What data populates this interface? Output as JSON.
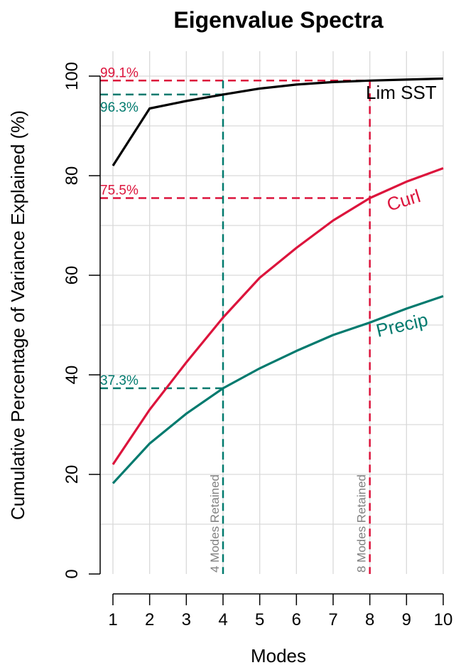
{
  "chart_data": {
    "type": "line",
    "title": "Eigenvalue Spectra",
    "xlabel": "Modes",
    "ylabel": "Cumulative Percentage of Variance Explained (%)",
    "x": [
      1,
      2,
      3,
      4,
      5,
      6,
      7,
      8,
      9,
      10
    ],
    "xlim": [
      1,
      10
    ],
    "ylim": [
      0,
      100
    ],
    "xticks": [
      1,
      2,
      3,
      4,
      5,
      6,
      7,
      8,
      9,
      10
    ],
    "yticks": [
      0,
      20,
      40,
      60,
      80,
      100
    ],
    "grid": true,
    "series": [
      {
        "name": "Lim SST",
        "color": "#000000",
        "values": [
          82.0,
          93.5,
          95.0,
          96.3,
          97.5,
          98.3,
          98.8,
          99.1,
          99.3,
          99.5
        ]
      },
      {
        "name": "Curl",
        "color": "#dc143c",
        "values": [
          22.0,
          33.0,
          42.5,
          51.5,
          59.5,
          65.5,
          71.0,
          75.5,
          78.8,
          81.5
        ]
      },
      {
        "name": "Precip",
        "color": "#007a6e",
        "values": [
          18.2,
          26.2,
          32.2,
          37.3,
          41.3,
          44.8,
          48.0,
          50.5,
          53.3,
          55.8
        ]
      }
    ],
    "annotations": [
      {
        "text": "99.1%",
        "color": "#dc143c",
        "y": 99.1
      },
      {
        "text": "96.3%",
        "color": "#007a6e",
        "y": 96.3
      },
      {
        "text": "75.5%",
        "color": "#dc143c",
        "y": 75.5
      },
      {
        "text": "37.3%",
        "color": "#007a6e",
        "y": 37.3
      }
    ],
    "retained_lines": [
      {
        "text": "4 Modes Retained",
        "x": 4,
        "color": "#007a6e"
      },
      {
        "text": "8 Modes Retained",
        "x": 8,
        "color": "#dc143c"
      }
    ]
  }
}
